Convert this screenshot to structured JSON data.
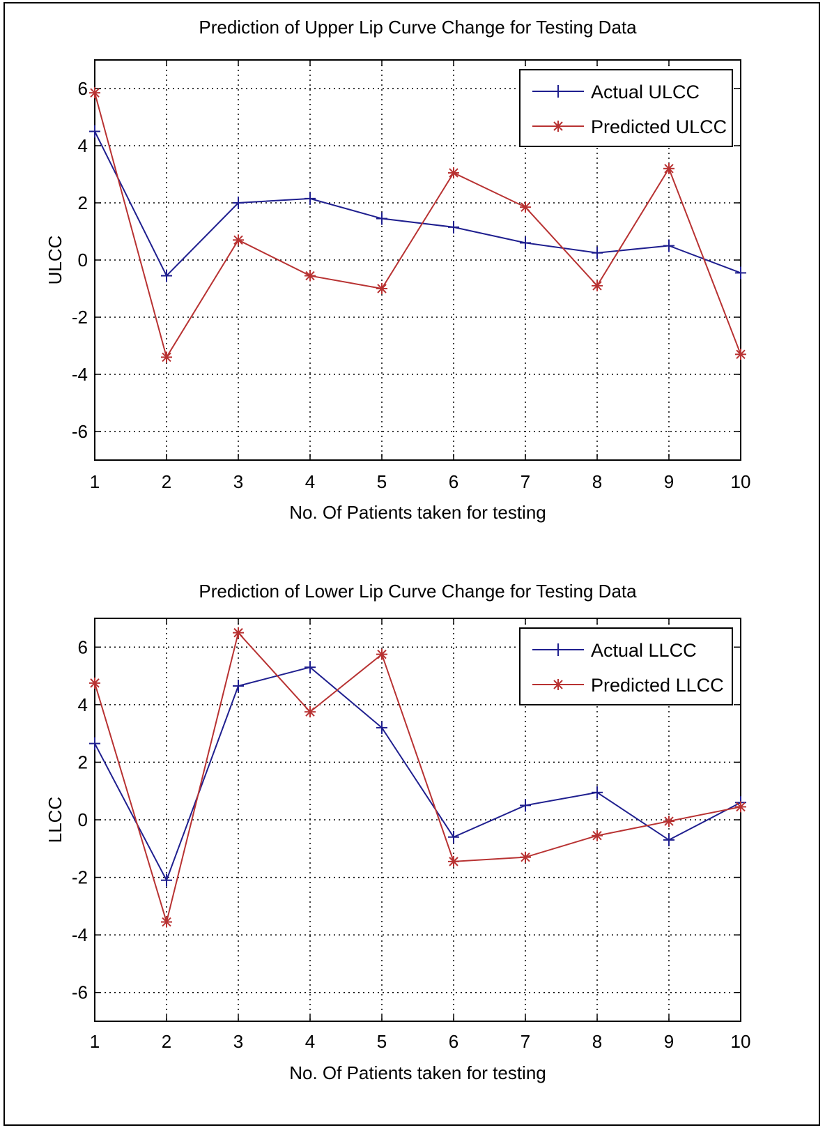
{
  "chart_data": [
    {
      "type": "line",
      "title": "Prediction of Upper Lip Curve Change for Testing Data",
      "xlabel": "No. Of Patients taken for testing",
      "ylabel": "ULCC",
      "x": [
        1,
        2,
        3,
        4,
        5,
        6,
        7,
        8,
        9,
        10
      ],
      "xlim": [
        1,
        10
      ],
      "ylim": [
        -7,
        7
      ],
      "xticks": [
        "1",
        "2",
        "3",
        "4",
        "5",
        "6",
        "7",
        "8",
        "9",
        "10"
      ],
      "yticks": [
        "-6",
        "-4",
        "-2",
        "0",
        "2",
        "4",
        "6"
      ],
      "grid": true,
      "legend_position": "top-right",
      "series": [
        {
          "name": "Actual ULCC",
          "color": "#1f1f8f",
          "marker": "plus",
          "values": [
            4.5,
            -0.55,
            2.0,
            2.15,
            1.45,
            1.15,
            0.6,
            0.25,
            0.5,
            -0.45
          ]
        },
        {
          "name": "Predicted ULCC",
          "color": "#b83232",
          "marker": "star",
          "values": [
            5.85,
            -3.4,
            0.7,
            -0.55,
            -1.0,
            3.05,
            1.85,
            -0.9,
            3.2,
            -3.3
          ]
        }
      ]
    },
    {
      "type": "line",
      "title": "Prediction of Lower Lip Curve Change for Testing Data",
      "xlabel": "No. Of Patients taken for testing",
      "ylabel": "LLCC",
      "x": [
        1,
        2,
        3,
        4,
        5,
        6,
        7,
        8,
        9,
        10
      ],
      "xlim": [
        1,
        10
      ],
      "ylim": [
        -7,
        7
      ],
      "xticks": [
        "1",
        "2",
        "3",
        "4",
        "5",
        "6",
        "7",
        "8",
        "9",
        "10"
      ],
      "yticks": [
        "-6",
        "-4",
        "-2",
        "0",
        "2",
        "4",
        "6"
      ],
      "grid": true,
      "legend_position": "top-right",
      "series": [
        {
          "name": "Actual LLCC",
          "color": "#1f1f8f",
          "marker": "plus",
          "values": [
            2.65,
            -2.1,
            4.65,
            5.3,
            3.2,
            -0.6,
            0.5,
            0.95,
            -0.7,
            0.6
          ]
        },
        {
          "name": "Predicted LLCC",
          "color": "#b83232",
          "marker": "star",
          "values": [
            4.75,
            -3.55,
            6.5,
            3.75,
            5.75,
            -1.45,
            -1.3,
            -0.55,
            -0.05,
            0.45
          ]
        }
      ]
    }
  ]
}
